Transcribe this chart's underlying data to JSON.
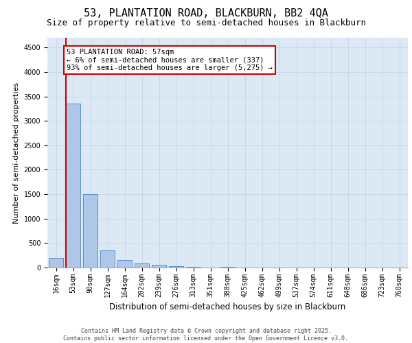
{
  "title1": "53, PLANTATION ROAD, BLACKBURN, BB2 4QA",
  "title2": "Size of property relative to semi-detached houses in Blackburn",
  "xlabel": "Distribution of semi-detached houses by size in Blackburn",
  "ylabel": "Number of semi-detached properties",
  "categories": [
    "16sqm",
    "53sqm",
    "90sqm",
    "127sqm",
    "164sqm",
    "202sqm",
    "239sqm",
    "276sqm",
    "313sqm",
    "351sqm",
    "388sqm",
    "425sqm",
    "462sqm",
    "499sqm",
    "537sqm",
    "574sqm",
    "611sqm",
    "648sqm",
    "686sqm",
    "723sqm",
    "760sqm"
  ],
  "values": [
    200,
    3350,
    1500,
    350,
    150,
    80,
    50,
    30,
    20,
    0,
    10,
    0,
    0,
    0,
    0,
    0,
    0,
    0,
    0,
    0,
    0
  ],
  "bar_color": "#aec6e8",
  "bar_edge_color": "#5b8fc9",
  "highlight_index": 1,
  "highlight_line_color": "#cc0000",
  "annotation_text": "53 PLANTATION ROAD: 57sqm\n← 6% of semi-detached houses are smaller (337)\n93% of semi-detached houses are larger (5,275) →",
  "annotation_box_color": "#ffffff",
  "annotation_edge_color": "#cc0000",
  "ylim": [
    0,
    4700
  ],
  "yticks": [
    0,
    500,
    1000,
    1500,
    2000,
    2500,
    3000,
    3500,
    4000,
    4500
  ],
  "grid_color": "#c8d8e8",
  "bg_color": "#dce9f5",
  "footer1": "Contains HM Land Registry data © Crown copyright and database right 2025.",
  "footer2": "Contains public sector information licensed under the Open Government Licence v3.0.",
  "title1_fontsize": 11,
  "title2_fontsize": 9,
  "tick_fontsize": 7,
  "ylabel_fontsize": 8,
  "xlabel_fontsize": 8.5,
  "annotation_fontsize": 7.5,
  "footer_fontsize": 6
}
